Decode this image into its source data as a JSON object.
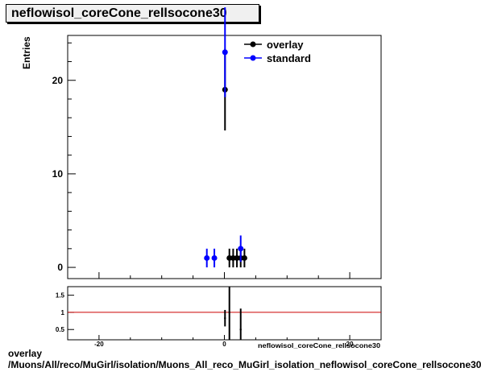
{
  "title": "neflowisol_coreCone_rellsocone30",
  "footer": {
    "line1": "overlay",
    "line2": "/Muons/All/reco/MuGirl/isolation/Muons_All_reco_MuGirl_isolation_neflowisol_coreCone_rellsocone30"
  },
  "colors": {
    "overlay": "#000000",
    "standard": "#0000ff",
    "ratio_line": "#cc0000"
  },
  "chart_data": [
    {
      "type": "scatter",
      "title": "neflowisol_coreCone_rellsocone30",
      "ylabel": "Entries",
      "xlim": [
        -25,
        25
      ],
      "ylim": [
        -1.2,
        24.8
      ],
      "x_ticks": [
        -20,
        0,
        20
      ],
      "y_ticks": [
        0,
        10,
        20
      ],
      "y_tick_labels": [
        "0",
        "10",
        "20"
      ],
      "legend": {
        "placement": "top-right",
        "entries": [
          "overlay",
          "standard"
        ]
      },
      "series": [
        {
          "name": "overlay",
          "color": "#000000",
          "points": [
            {
              "x": 0.1,
              "y": 19,
              "err": 4.36
            },
            {
              "x": 0.8,
              "y": 1,
              "err": 1
            },
            {
              "x": 1.4,
              "y": 1,
              "err": 1
            },
            {
              "x": 2.0,
              "y": 1,
              "err": 1
            },
            {
              "x": 2.6,
              "y": 1,
              "err": 1
            },
            {
              "x": 3.2,
              "y": 1,
              "err": 1
            }
          ]
        },
        {
          "name": "standard",
          "color": "#0000ff",
          "points": [
            {
              "x": -2.8,
              "y": 1,
              "err": 1
            },
            {
              "x": -1.6,
              "y": 1,
              "err": 1
            },
            {
              "x": 0.1,
              "y": 23,
              "err": 4.8
            },
            {
              "x": 2.6,
              "y": 2,
              "err": 1.41
            }
          ]
        }
      ]
    },
    {
      "type": "scatter",
      "title": "",
      "xlabel": "neflowisol_coreCone_rellsocone30",
      "xlim": [
        -25,
        25
      ],
      "ylim": [
        0.2,
        1.75
      ],
      "x_ticks": [
        -20,
        0,
        20
      ],
      "x_tick_labels": [
        "-20",
        "0",
        "20"
      ],
      "y_ticks": [
        0.5,
        1,
        1.5
      ],
      "y_tick_labels": [
        "0.5",
        "1",
        "1.5"
      ],
      "reference_line": 1,
      "points": [
        {
          "x": 0.1,
          "y": 0.83,
          "err": 0.24
        },
        {
          "x": 0.8,
          "y": 1.0,
          "err": 1.0
        },
        {
          "x": 2.6,
          "y": 0.5,
          "err": 0.61
        }
      ]
    }
  ]
}
